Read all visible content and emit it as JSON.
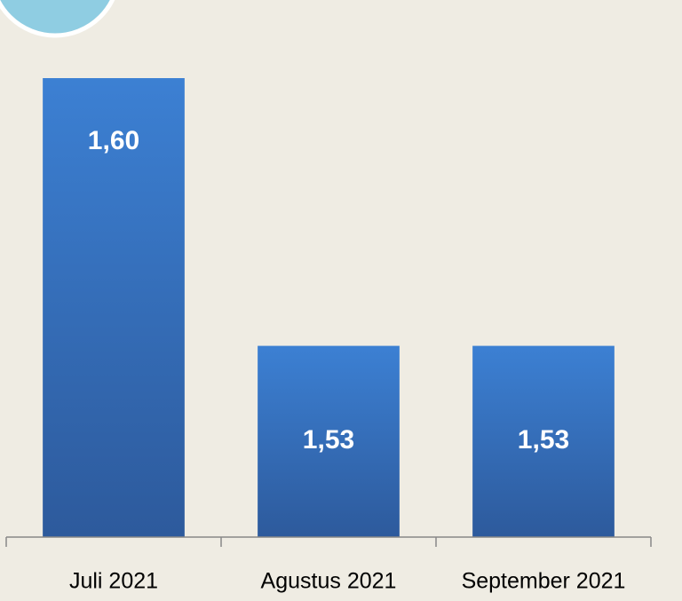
{
  "chart_data": {
    "type": "bar",
    "categories": [
      "Juli 2021",
      "Agustus 2021",
      "September 2021"
    ],
    "values": [
      1.6,
      1.53,
      1.53
    ],
    "value_labels": [
      "1,60",
      "1,53",
      "1,53"
    ],
    "color": "#3778c9",
    "ylim": [
      1.48,
      1.6
    ]
  }
}
